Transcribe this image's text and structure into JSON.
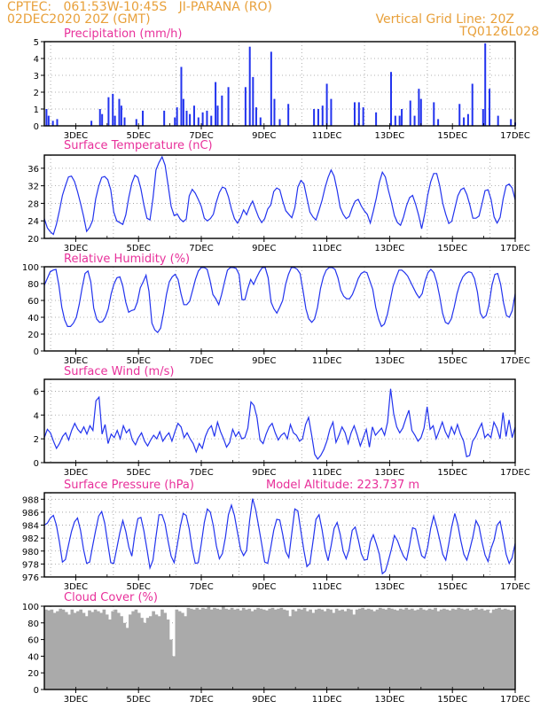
{
  "header": {
    "line1": "CPTEC:   061:53W-10:45S   JI-PARANA (RO)",
    "line2": "02DEC2020 20Z (GMT)",
    "grid_note": "Vertical Grid Line: 20Z",
    "code": "TQ0126L028"
  },
  "colors": {
    "header": "#e8a03a",
    "title": "#e8309a",
    "series": "#2233ee",
    "cloud": "#aaaaaa"
  },
  "chart_data": [
    {
      "type": "bar",
      "title": "Precipitation (mm/h)",
      "x_ticks": [
        "3DEC",
        "5DEC",
        "7DEC",
        "9DEC",
        "11DEC",
        "13DEC",
        "15DEC",
        "17DEC"
      ],
      "ylim": [
        0,
        5
      ],
      "yticks": [
        0,
        1,
        2,
        3,
        4,
        5
      ],
      "grid": true,
      "values": [
        [
          0.1,
          1.0
        ],
        [
          0.2,
          0.6
        ],
        [
          0.4,
          0.3
        ],
        [
          0.6,
          0.4
        ],
        [
          2.2,
          0.3
        ],
        [
          2.6,
          1.0
        ],
        [
          2.7,
          0.7
        ],
        [
          3.0,
          1.7
        ],
        [
          3.2,
          1.9
        ],
        [
          3.3,
          0.6
        ],
        [
          3.5,
          1.6
        ],
        [
          3.6,
          1.2
        ],
        [
          3.75,
          0.5
        ],
        [
          4.3,
          0.4
        ],
        [
          4.6,
          0.9
        ],
        [
          5.6,
          0.9
        ],
        [
          6.1,
          0.5
        ],
        [
          6.2,
          1.1
        ],
        [
          6.4,
          3.5
        ],
        [
          6.5,
          1.6
        ],
        [
          6.65,
          0.9
        ],
        [
          6.8,
          0.7
        ],
        [
          7.0,
          1.2
        ],
        [
          7.2,
          0.5
        ],
        [
          7.4,
          0.8
        ],
        [
          7.6,
          0.9
        ],
        [
          7.8,
          0.6
        ],
        [
          8.0,
          2.6
        ],
        [
          8.1,
          1.2
        ],
        [
          8.3,
          1.8
        ],
        [
          8.6,
          2.3
        ],
        [
          9.4,
          2.3
        ],
        [
          9.6,
          4.7
        ],
        [
          9.75,
          2.9
        ],
        [
          9.9,
          1.1
        ],
        [
          10.1,
          0.5
        ],
        [
          10.6,
          4.4
        ],
        [
          10.75,
          1.6
        ],
        [
          11.0,
          0.4
        ],
        [
          11.4,
          1.3
        ],
        [
          12.6,
          1.0
        ],
        [
          12.8,
          1.0
        ],
        [
          13.0,
          1.2
        ],
        [
          13.2,
          2.5
        ],
        [
          13.4,
          1.6
        ],
        [
          14.5,
          1.4
        ],
        [
          14.7,
          1.4
        ],
        [
          14.9,
          1.1
        ],
        [
          15.5,
          0.8
        ],
        [
          16.2,
          3.2
        ],
        [
          16.4,
          0.6
        ],
        [
          16.6,
          0.6
        ],
        [
          16.7,
          1.0
        ],
        [
          17.1,
          1.5
        ],
        [
          17.3,
          0.6
        ],
        [
          17.5,
          2.2
        ],
        [
          17.6,
          1.6
        ],
        [
          18.2,
          1.4
        ],
        [
          18.4,
          0.4
        ],
        [
          19.4,
          1.3
        ],
        [
          19.6,
          0.5
        ],
        [
          19.8,
          0.7
        ],
        [
          20.0,
          2.5
        ],
        [
          20.5,
          1.0
        ],
        [
          20.6,
          4.9
        ],
        [
          20.8,
          2.2
        ],
        [
          21.2,
          0.6
        ],
        [
          21.8,
          0.4
        ],
        [
          22.0,
          0.2
        ]
      ]
    },
    {
      "type": "line",
      "title": "Surface Temperature (nC)",
      "x_ticks": [
        "3DEC",
        "5DEC",
        "7DEC",
        "9DEC",
        "11DEC",
        "13DEC",
        "15DEC",
        "17DEC"
      ],
      "ylim": [
        20,
        39
      ],
      "yticks": [
        20,
        24,
        28,
        32,
        36
      ],
      "grid": true,
      "values": [
        24.5,
        22.4,
        21.5,
        20.9,
        23.2,
        26.3,
        29.8,
        32.0,
        34.0,
        34.2,
        33.0,
        30.7,
        28.0,
        25.0,
        21.6,
        22.5,
        24.1,
        29.0,
        31.9,
        33.9,
        34.1,
        33.4,
        31.1,
        26.0,
        24.0,
        23.6,
        23.2,
        25.4,
        29.4,
        32.6,
        34.4,
        33.9,
        31.3,
        27.6,
        24.6,
        24.2,
        29.1,
        35.6,
        37.3,
        38.6,
        36.7,
        32.1,
        27.3,
        25.2,
        25.6,
        24.4,
        23.8,
        24.4,
        29.7,
        31.2,
        30.3,
        28.9,
        27.3,
        24.6,
        24.0,
        24.5,
        25.5,
        28.3,
        30.5,
        31.7,
        31.4,
        29.5,
        26.7,
        24.5,
        23.5,
        24.7,
        26.5,
        25.4,
        27.2,
        28.5,
        26.6,
        24.8,
        23.6,
        24.5,
        26.7,
        27.6,
        30.7,
        31.5,
        31.1,
        28.5,
        26.3,
        25.5,
        24.7,
        27.0,
        31.7,
        33.2,
        32.5,
        29.2,
        26.0,
        24.9,
        24.2,
        26.4,
        28.7,
        31.6,
        33.9,
        35.6,
        34.2,
        31.0,
        27.1,
        25.5,
        24.5,
        25.0,
        27.0,
        28.5,
        28.9,
        27.4,
        26.3,
        25.5,
        23.5,
        26.2,
        29.2,
        32.8,
        35.1,
        34.0,
        31.0,
        28.3,
        25.2,
        23.6,
        23.0,
        24.9,
        27.5,
        29.3,
        29.8,
        27.8,
        25.3,
        22.2,
        25.5,
        29.8,
        32.9,
        34.8,
        34.8,
        32.0,
        28.0,
        25.5,
        23.4,
        23.9,
        26.8,
        29.7,
        31.1,
        31.5,
        30.0,
        27.6,
        24.6,
        24.6,
        25.1,
        27.9,
        30.9,
        31.1,
        28.9,
        24.9,
        23.5,
        24.8,
        29.0,
        32.0,
        32.4,
        31.5,
        28.8
      ],
      "annotations": []
    },
    {
      "type": "line",
      "title": "Relative Humidity (%)",
      "x_ticks": [
        "3DEC",
        "5DEC",
        "7DEC",
        "9DEC",
        "11DEC",
        "13DEC",
        "15DEC",
        "17DEC"
      ],
      "ylim": [
        0,
        100
      ],
      "yticks": [
        0,
        20,
        40,
        60,
        80,
        100
      ],
      "grid": true,
      "values": [
        78,
        86,
        94,
        96,
        97,
        78,
        52,
        37,
        29,
        29,
        33,
        40,
        55,
        75,
        92,
        95,
        82,
        51,
        38,
        34,
        35,
        40,
        50,
        68,
        80,
        87,
        88,
        77,
        58,
        46,
        48,
        49,
        58,
        75,
        82,
        90,
        71,
        33,
        25,
        22,
        27,
        45,
        67,
        82,
        88,
        91,
        85,
        68,
        55,
        55,
        59,
        72,
        85,
        95,
        99,
        99,
        97,
        84,
        67,
        62,
        55,
        67,
        82,
        96,
        99,
        99,
        98,
        91,
        61,
        61,
        74,
        85,
        79,
        87,
        94,
        99,
        99,
        87,
        58,
        50,
        45,
        52,
        60,
        79,
        91,
        99,
        99,
        97,
        92,
        72,
        50,
        38,
        34,
        38,
        52,
        74,
        88,
        96,
        99,
        99,
        97,
        87,
        72,
        65,
        62,
        62,
        67,
        76,
        86,
        92,
        94,
        93,
        83,
        73,
        52,
        38,
        29,
        32,
        43,
        60,
        77,
        87,
        96,
        96,
        93,
        89,
        82,
        75,
        68,
        63,
        68,
        83,
        93,
        97,
        93,
        82,
        65,
        45,
        34,
        32,
        38,
        52,
        68,
        80,
        88,
        92,
        94,
        93,
        86,
        70,
        45,
        39,
        42,
        55,
        78,
        91,
        92,
        79,
        57,
        42,
        40,
        48,
        68
      ],
      "annotations": []
    },
    {
      "type": "line",
      "title": "Surface Wind (m/s)",
      "x_ticks": [
        "3DEC",
        "5DEC",
        "7DEC",
        "9DEC",
        "11DEC",
        "13DEC",
        "15DEC",
        "17DEC"
      ],
      "ylim": [
        0,
        7
      ],
      "yticks": [
        0,
        2,
        4,
        6
      ],
      "grid": true,
      "values": [
        2.1,
        2.8,
        2.5,
        1.8,
        1.2,
        1.6,
        2.2,
        2.5,
        1.9,
        2.7,
        3.3,
        2.8,
        2.5,
        3.0,
        2.4,
        3.1,
        2.7,
        5.2,
        5.5,
        2.4,
        3.2,
        1.6,
        2.4,
        2.1,
        2.7,
        2.0,
        3.1,
        2.5,
        2.8,
        1.9,
        1.5,
        2.1,
        2.5,
        1.8,
        1.4,
        1.9,
        2.3,
        2.0,
        2.6,
        1.8,
        2.2,
        2.5,
        1.8,
        2.6,
        3.3,
        3.0,
        2.1,
        2.5,
        2.0,
        1.6,
        0.9,
        1.6,
        1.2,
        2.2,
        2.8,
        3.1,
        2.2,
        3.4,
        2.6,
        2.0,
        1.3,
        1.7,
        2.8,
        2.2,
        2.6,
        2.0,
        2.1,
        2.9,
        5.1,
        4.8,
        3.8,
        1.9,
        1.6,
        2.4,
        3.0,
        3.3,
        2.5,
        1.9,
        2.3,
        2.5,
        2.0,
        3.2,
        2.5,
        2.3,
        1.8,
        2.0,
        3.2,
        3.8,
        2.3,
        0.7,
        0.3,
        0.6,
        1.1,
        1.8,
        2.8,
        3.4,
        1.7,
        2.3,
        3.0,
        2.5,
        1.6,
        2.5,
        3.1,
        2.3,
        1.4,
        2.1,
        2.8,
        1.3,
        3.0,
        2.3,
        2.6,
        2.9,
        2.3,
        3.4,
        6.2,
        4.1,
        3.0,
        2.5,
        2.9,
        3.7,
        4.4,
        2.7,
        2.3,
        1.8,
        2.1,
        2.9,
        4.7,
        2.8,
        3.1,
        2.0,
        2.7,
        3.4,
        2.6,
        2.1,
        3.0,
        2.4,
        3.2,
        2.4,
        1.8,
        0.5,
        0.6,
        1.8,
        2.2,
        2.8,
        3.3,
        2.1,
        2.4,
        2.1,
        3.4,
        2.9,
        2.0,
        4.2,
        2.2,
        3.6,
        2.1,
        3.0
      ],
      "annotations": []
    },
    {
      "type": "line",
      "title": "Surface Pressure (hPa)",
      "note": "Model Altitude: 223.737 m",
      "x_ticks": [
        "3DEC",
        "5DEC",
        "7DEC",
        "9DEC",
        "11DEC",
        "13DEC",
        "15DEC",
        "17DEC"
      ],
      "ylim": [
        976,
        989
      ],
      "yticks": [
        976,
        978,
        980,
        982,
        984,
        986,
        988
      ],
      "grid": true,
      "values": [
        984.0,
        984.3,
        985.1,
        985.5,
        984.0,
        981.4,
        978.3,
        978.7,
        980.9,
        983.0,
        984.5,
        985.1,
        983.2,
        980.2,
        978.1,
        978.3,
        980.8,
        983.2,
        985.4,
        986.1,
        984.3,
        981.2,
        978.2,
        978.1,
        980.4,
        982.8,
        984.7,
        983.0,
        980.6,
        979.2,
        982.6,
        985.0,
        985.2,
        983.1,
        980.3,
        977.4,
        978.6,
        982.2,
        985.6,
        985.6,
        984.2,
        981.5,
        979.2,
        978.2,
        980.8,
        983.7,
        985.8,
        985.5,
        983.4,
        980.3,
        978.1,
        978.2,
        981.1,
        984.4,
        986.5,
        986.0,
        983.9,
        980.8,
        978.8,
        979.6,
        982.1,
        985.6,
        987.1,
        985.5,
        982.9,
        980.3,
        979.3,
        980.1,
        984.7,
        988.1,
        986.4,
        983.8,
        981.1,
        978.3,
        978.1,
        980.5,
        983.2,
        984.9,
        984.8,
        982.5,
        979.9,
        979.0,
        982.8,
        986.5,
        986.2,
        983.1,
        980.1,
        977.6,
        978.1,
        981.4,
        984.9,
        985.6,
        983.3,
        980.3,
        978.5,
        980.8,
        983.5,
        984.4,
        982.6,
        980.0,
        978.8,
        980.3,
        983.2,
        983.7,
        981.8,
        979.6,
        978.6,
        978.7,
        981.4,
        982.5,
        981.1,
        979.5,
        976.5,
        976.9,
        978.5,
        980.3,
        982.4,
        981.6,
        980.3,
        979.2,
        978.6,
        980.9,
        983.6,
        983.4,
        981.2,
        979.3,
        978.9,
        980.6,
        983.5,
        985.4,
        983.7,
        981.7,
        979.5,
        978.6,
        981.1,
        983.8,
        985.8,
        984.1,
        981.6,
        979.5,
        978.6,
        980.3,
        982.2,
        984.7,
        983.8,
        981.4,
        979.4,
        978.4,
        980.4,
        981.7,
        984.0,
        984.6,
        982.2,
        979.5,
        978.1,
        979.0,
        981.2
      ],
      "annotations": []
    },
    {
      "type": "area",
      "title": "Cloud Cover (%)",
      "x_ticks": [
        "3DEC",
        "5DEC",
        "7DEC",
        "9DEC",
        "11DEC",
        "13DEC",
        "15DEC",
        "17DEC"
      ],
      "ylim": [
        0,
        100
      ],
      "yticks": [
        0,
        20,
        40,
        60,
        80,
        100
      ],
      "grid": true,
      "values": [
        96,
        95,
        96,
        92,
        94,
        97,
        96,
        93,
        90,
        96,
        92,
        94,
        96,
        92,
        88,
        95,
        93,
        96,
        94,
        92,
        96,
        90,
        84,
        94,
        96,
        92,
        88,
        80,
        74,
        90,
        94,
        96,
        92,
        86,
        80,
        86,
        88,
        94,
        90,
        88,
        96,
        92,
        84,
        60,
        40,
        96,
        94,
        92,
        88,
        98,
        97,
        96,
        98,
        96,
        98,
        97,
        99,
        96,
        98,
        97,
        96,
        100,
        97,
        96,
        98,
        96,
        97,
        95,
        98,
        96,
        97,
        94,
        96,
        98,
        97,
        96,
        95,
        97,
        98,
        96,
        97,
        98,
        96,
        95,
        88,
        96,
        94,
        97,
        96,
        98,
        94,
        96,
        92,
        96,
        97,
        96,
        94,
        97,
        96,
        92,
        97,
        95,
        96,
        94,
        97,
        96,
        90,
        96,
        97,
        98,
        96,
        97,
        96,
        94,
        96,
        98,
        97,
        96,
        98,
        97,
        96,
        95,
        97,
        96,
        98,
        96,
        97,
        95,
        96,
        98,
        96,
        95,
        97,
        96,
        98,
        94,
        96,
        97,
        96,
        95,
        97,
        96,
        98,
        97,
        96,
        97,
        95,
        96,
        98,
        96,
        97,
        95,
        96,
        92,
        96,
        97,
        98,
        96,
        97,
        96,
        95,
        96
      ],
      "annotations": []
    }
  ]
}
